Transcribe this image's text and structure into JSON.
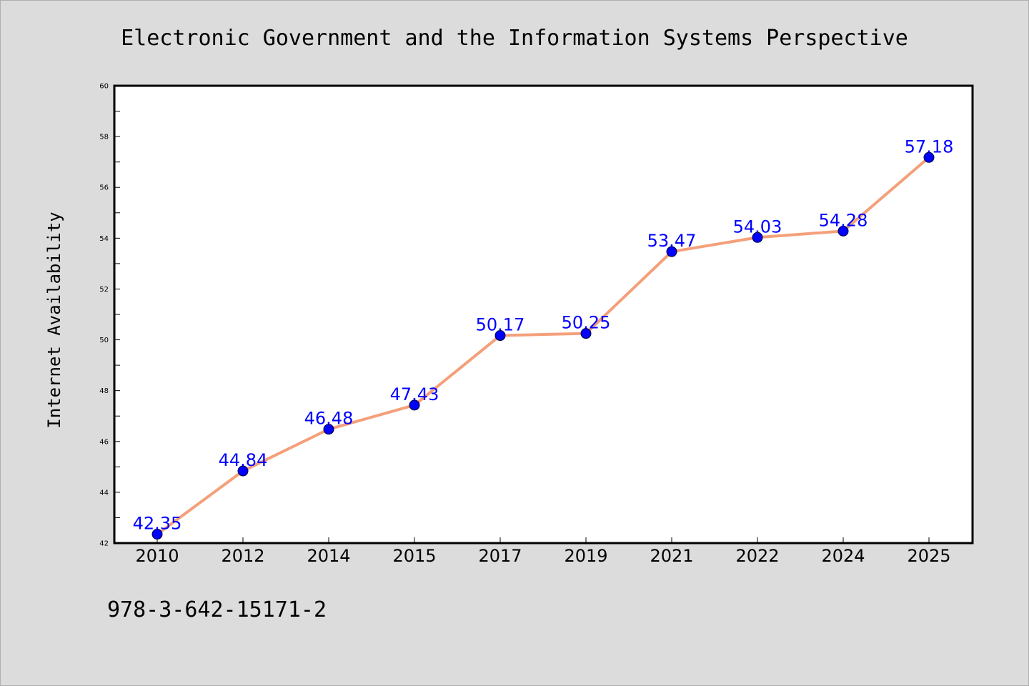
{
  "chart_data": {
    "type": "line",
    "title": "Electronic Government and the Information Systems Perspective",
    "xlabel": "",
    "ylabel": "Internet Availability",
    "categories": [
      "2010",
      "2012",
      "2014",
      "2015",
      "2017",
      "2019",
      "2021",
      "2022",
      "2024",
      "2025"
    ],
    "series": [
      {
        "values": [
          42.35,
          44.84,
          46.48,
          47.43,
          50.17,
          50.25,
          53.47,
          54.03,
          54.28,
          57.18
        ],
        "data_labels": [
          "42.35",
          "44.84",
          "46.48",
          "47.43",
          "50.17",
          "50.25",
          "53.47",
          "54.03",
          "54.28",
          "57.18"
        ]
      }
    ],
    "ylim": [
      42,
      60
    ],
    "yticks": [
      "42",
      "44",
      "46",
      "48",
      "50",
      "52",
      "54",
      "56",
      "58",
      "60"
    ],
    "grid": false,
    "legend": "none",
    "line_color": "#f4a07a",
    "marker_color": "#0000ff",
    "label_color": "#0000ff"
  },
  "footer": {
    "isbn": "978-3-642-15171-2"
  }
}
